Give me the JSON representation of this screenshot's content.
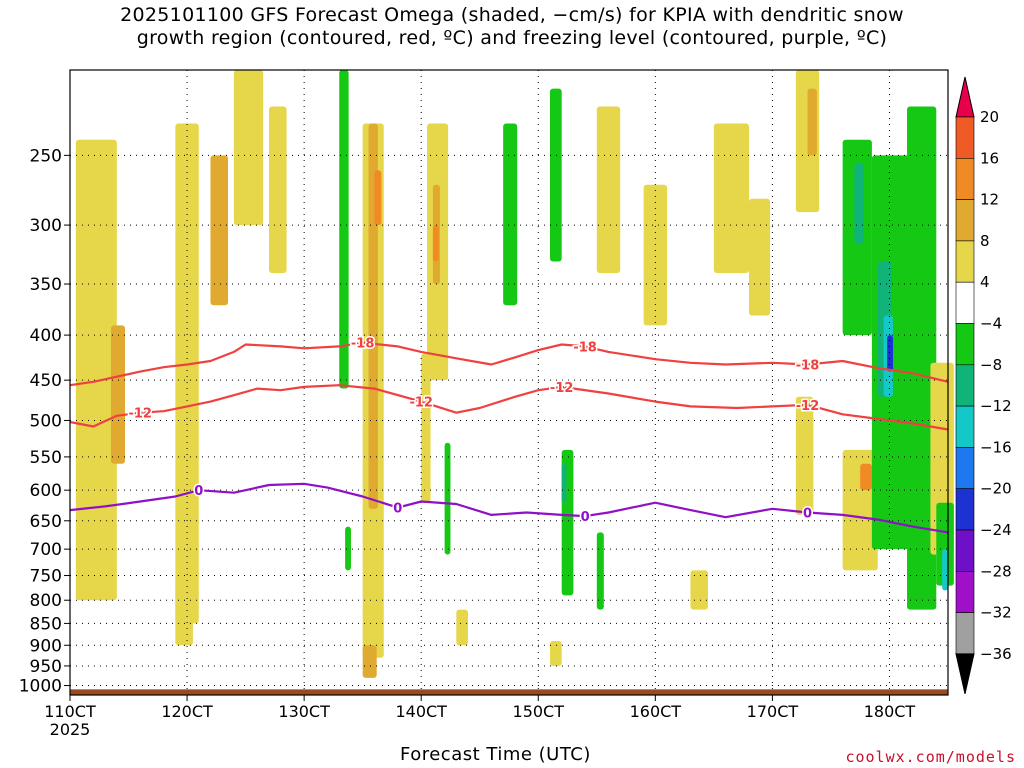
{
  "title": "2025101100 GFS Forecast Omega (shaded, −cm/s) for KPIA with dendritic snow\ngrowth region (contoured, red, ºC) and freezing level (contoured, purple, ºC)",
  "credit": "coolwx.com/models",
  "chart_data": {
    "type": "heatmap",
    "title": "2025101100 GFS Forecast Omega (shaded, −cm/s) for KPIA with dendritic snow growth region (contoured, red, ºC) and freezing level (contoured, purple, ºC)",
    "xlabel": "Forecast Time (UTC)",
    "ylabel": "",
    "x_ticks": [
      "110CT",
      "120CT",
      "130CT",
      "140CT",
      "150CT",
      "160CT",
      "170CT",
      "180CT"
    ],
    "x_tick_sub": "2025",
    "x_range_days": [
      11.0,
      18.5
    ],
    "y_ticks": [
      250,
      300,
      350,
      400,
      450,
      500,
      550,
      600,
      650,
      700,
      750,
      800,
      850,
      900,
      950,
      1000
    ],
    "y_range_hPa": [
      200,
      1025
    ],
    "y_scale": "log-pressure",
    "grid": true,
    "colorbar": {
      "labels": [
        "20",
        "16",
        "12",
        "8",
        "4",
        "−4",
        "−8",
        "−12",
        "−16",
        "−20",
        "−24",
        "−28",
        "−32",
        "−36"
      ],
      "colors": [
        "#e8004a",
        "#f05a24",
        "#f08a24",
        "#e0aa30",
        "#e6d64a",
        "#ffffff",
        "#14c814",
        "#10b478",
        "#14c8c8",
        "#1e78f0",
        "#1e32d2",
        "#6e10c8",
        "#a010c8",
        "#a0a0a0",
        "#000000"
      ]
    },
    "contours": [
      {
        "label": "-18",
        "color": "#f04040",
        "points": [
          [
            11.0,
            456
          ],
          [
            11.2,
            452
          ],
          [
            11.4,
            446
          ],
          [
            11.6,
            440
          ],
          [
            11.8,
            435
          ],
          [
            12.0,
            432
          ],
          [
            12.2,
            428
          ],
          [
            12.4,
            418
          ],
          [
            12.5,
            410
          ],
          [
            12.8,
            412
          ],
          [
            13.0,
            414
          ],
          [
            13.3,
            412
          ],
          [
            13.5,
            408
          ],
          [
            13.8,
            412
          ],
          [
            14.0,
            418
          ],
          [
            14.3,
            425
          ],
          [
            14.6,
            432
          ],
          [
            14.8,
            424
          ],
          [
            15.0,
            416
          ],
          [
            15.2,
            410
          ],
          [
            15.4,
            412
          ],
          [
            15.6,
            418
          ],
          [
            16.0,
            426
          ],
          [
            16.3,
            430
          ],
          [
            16.6,
            432
          ],
          [
            17.0,
            430
          ],
          [
            17.3,
            432
          ],
          [
            17.6,
            428
          ],
          [
            17.9,
            436
          ],
          [
            18.2,
            442
          ],
          [
            18.5,
            452
          ]
        ],
        "labels_at": [
          13.5,
          15.3,
          17.4
        ]
      },
      {
        "label": "-12",
        "color": "#f04040",
        "points": [
          [
            11.0,
            502
          ],
          [
            11.2,
            508
          ],
          [
            11.4,
            494
          ],
          [
            11.6,
            490
          ],
          [
            11.8,
            488
          ],
          [
            12.0,
            482
          ],
          [
            12.2,
            476
          ],
          [
            12.4,
            468
          ],
          [
            12.6,
            460
          ],
          [
            12.8,
            462
          ],
          [
            13.0,
            458
          ],
          [
            13.3,
            456
          ],
          [
            13.6,
            460
          ],
          [
            14.0,
            476
          ],
          [
            14.3,
            490
          ],
          [
            14.5,
            484
          ],
          [
            14.8,
            470
          ],
          [
            15.0,
            462
          ],
          [
            15.2,
            458
          ],
          [
            15.6,
            466
          ],
          [
            16.0,
            476
          ],
          [
            16.3,
            482
          ],
          [
            16.7,
            484
          ],
          [
            17.0,
            482
          ],
          [
            17.3,
            480
          ],
          [
            17.6,
            492
          ],
          [
            17.9,
            498
          ],
          [
            18.2,
            504
          ],
          [
            18.5,
            512
          ]
        ],
        "labels_at": [
          11.7,
          13.8,
          15.3,
          17.4
        ]
      },
      {
        "label": "0",
        "color": "#9010c8",
        "points": [
          [
            11.0,
            632
          ],
          [
            11.3,
            626
          ],
          [
            11.6,
            618
          ],
          [
            11.9,
            610
          ],
          [
            12.1,
            600
          ],
          [
            12.4,
            604
          ],
          [
            12.7,
            592
          ],
          [
            13.0,
            590
          ],
          [
            13.2,
            596
          ],
          [
            13.5,
            610
          ],
          [
            13.8,
            628
          ],
          [
            14.0,
            618
          ],
          [
            14.3,
            622
          ],
          [
            14.6,
            640
          ],
          [
            14.9,
            636
          ],
          [
            15.2,
            640
          ],
          [
            15.4,
            642
          ],
          [
            15.6,
            636
          ],
          [
            15.8,
            628
          ],
          [
            16.0,
            620
          ],
          [
            16.3,
            632
          ],
          [
            16.6,
            644
          ],
          [
            17.0,
            630
          ],
          [
            17.3,
            636
          ],
          [
            17.6,
            640
          ],
          [
            17.9,
            648
          ],
          [
            18.2,
            660
          ],
          [
            18.5,
            670
          ]
        ],
        "labels_at": [
          12.2,
          13.8,
          15.5,
          17.4
        ]
      }
    ],
    "ground_hPa": 1010
  }
}
